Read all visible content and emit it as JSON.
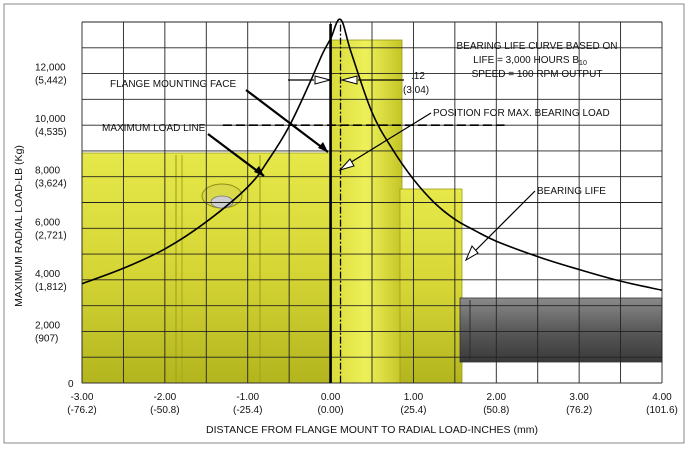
{
  "chart_data": {
    "type": "line",
    "title": "",
    "xlabel": "DISTANCE FROM FLANGE MOUNT TO RADIAL LOAD-INCHES (mm)",
    "ylabel": "MAXIMUM RADIAL LOAD-LB (Kg)",
    "xlim": [
      -3.0,
      4.0
    ],
    "ylim": [
      0,
      14000
    ],
    "grid": true,
    "x_ticks": [
      {
        "value": -3.0,
        "label": "-3.00",
        "sublabel": "(-76.2)"
      },
      {
        "value": -2.0,
        "label": "-2.00",
        "sublabel": "(-50.8)"
      },
      {
        "value": -1.0,
        "label": "-1.00",
        "sublabel": "(-25.4)"
      },
      {
        "value": 0.0,
        "label": "0.00",
        "sublabel": "(0.00)"
      },
      {
        "value": 1.0,
        "label": "1.00",
        "sublabel": "(25.4)"
      },
      {
        "value": 2.0,
        "label": "2.00",
        "sublabel": "(50.8)"
      },
      {
        "value": 3.0,
        "label": "3.00",
        "sublabel": "(76.2)"
      },
      {
        "value": 4.0,
        "label": "4.00",
        "sublabel": "(101.6)"
      }
    ],
    "y_ticks": [
      {
        "value": 0,
        "label": "0",
        "sublabel": ""
      },
      {
        "value": 2000,
        "label": "2,000",
        "sublabel": "(907)"
      },
      {
        "value": 4000,
        "label": "4,000",
        "sublabel": "(1,812)"
      },
      {
        "value": 6000,
        "label": "6,000",
        "sublabel": "(2,721)"
      },
      {
        "value": 8000,
        "label": "8,000",
        "sublabel": "(3,624)"
      },
      {
        "value": 10000,
        "label": "10,000",
        "sublabel": "(4,535)"
      },
      {
        "value": 12000,
        "label": "12,000",
        "sublabel": "(5,442)"
      }
    ],
    "series": [
      {
        "name": "BEARING LIFE",
        "x": [
          -3.0,
          -2.5,
          -2.0,
          -1.5,
          -1.0,
          -0.75,
          -0.5,
          -0.25,
          -0.1,
          0.0,
          0.12,
          0.25,
          0.5,
          0.75,
          1.0,
          1.25,
          1.5,
          1.75,
          2.0,
          2.5,
          3.0,
          3.5,
          4.0
        ],
        "y": [
          3850,
          4450,
          5200,
          6250,
          7600,
          8650,
          9950,
          11650,
          12750,
          13350,
          14100,
          12800,
          10500,
          9050,
          7900,
          7000,
          6350,
          5900,
          5500,
          4900,
          4400,
          3950,
          3600
        ]
      }
    ],
    "maximum_load_line": {
      "y": 10000,
      "x_from": -1.3,
      "x_to": 2.1
    },
    "flange_mounting_face_x": 0.0,
    "max_load_position_x": 0.12,
    "annotations": {
      "title_block": [
        "BEARING LIFE CURVE BASED ON",
        "LIFE = 3,000 HOURS B",
        "SPEED = 100 RPM OUTPUT"
      ],
      "title_block_subscript": "10",
      "flange_mounting_face": "FLANGE MOUNTING FACE",
      "offset_in": ".12",
      "offset_mm": "(3.04)",
      "maximum_load_line": "MAXIMUM LOAD LINE",
      "position_max_load": "POSITION FOR MAX. BEARING LOAD",
      "bearing_life": "BEARING LIFE"
    }
  }
}
